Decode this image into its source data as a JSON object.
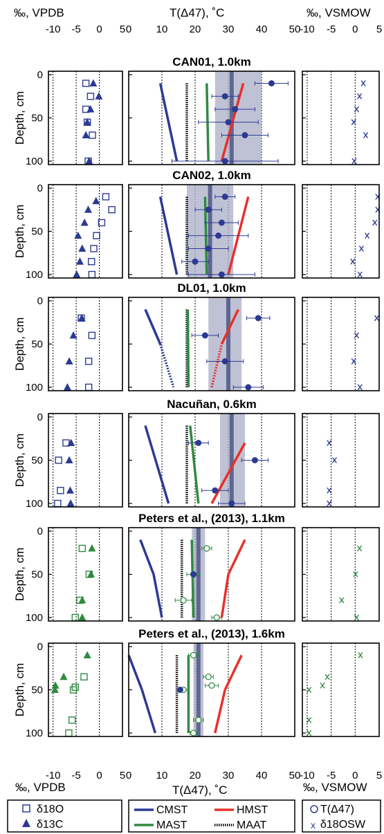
{
  "top_axes": {
    "left_label": "‰, VPDB",
    "middle_label": "T(Δ47), ˚C",
    "right_label": "‰, VSMOW",
    "left_ticks": [
      "-10",
      "-5",
      "0",
      "5"
    ],
    "middle_ticks": [
      "0",
      "10",
      "20",
      "30",
      "40",
      "50"
    ],
    "right_ticks": [
      "-10",
      "-5",
      "0",
      "5"
    ]
  },
  "bottom_axes": {
    "left_label": "‰, VPDB",
    "middle_label": "T(Δ47), ˚C",
    "right_label": "‰, VSMOW",
    "left_ticks": [
      "-10",
      "-5",
      "0",
      "5"
    ],
    "middle_ticks": [
      "0",
      "10",
      "20",
      "30",
      "40",
      "50"
    ],
    "right_ticks": [
      "-10",
      "-5",
      "0",
      "5"
    ]
  },
  "y_axis": {
    "label": "Depth, cm",
    "ticks": [
      "0",
      "50",
      "100"
    ]
  },
  "legend": {
    "left": [
      "δ18O",
      "δ13C"
    ],
    "middle": [
      "CMST",
      "HMST",
      "MAST",
      "MAAT"
    ],
    "right": [
      "T(Δ47)",
      "δ18OSW"
    ]
  },
  "colors": {
    "blue": "#2c3a93",
    "green": "#2e8b3e",
    "red": "#e8302a",
    "shade": "#a9aec6",
    "avg_band": "#5e6691"
  },
  "chart_data": [
    {
      "type": "scatter",
      "title": "CAN01, 1.0km",
      "color": "blue",
      "d18O": [
        [
          -2.9,
          10
        ],
        [
          -1.9,
          25
        ],
        [
          -2.9,
          40
        ],
        [
          -2.6,
          55
        ],
        [
          -1.5,
          70
        ],
        [
          -2.4,
          100
        ]
      ],
      "d13C": [
        [
          -1.3,
          10
        ],
        [
          -0.1,
          25
        ],
        [
          -1.9,
          40
        ],
        [
          -2.6,
          55
        ],
        [
          -2.9,
          70
        ],
        [
          -2.2,
          100
        ]
      ],
      "d18Osw": [
        [
          1.7,
          10
        ],
        [
          0.9,
          25
        ],
        [
          0.3,
          40
        ],
        [
          -0.3,
          55
        ],
        [
          2.2,
          70
        ],
        [
          -0.2,
          100
        ]
      ],
      "T47": [
        [
          43,
          10,
          5
        ],
        [
          29,
          25,
          4
        ],
        [
          32,
          40,
          6
        ],
        [
          30,
          55,
          9
        ],
        [
          35,
          70,
          7
        ],
        [
          29,
          100,
          16
        ]
      ],
      "T47_open": false,
      "CMST": [
        [
          9.5,
          10
        ],
        [
          14.5,
          100
        ]
      ],
      "HMST": [
        [
          28,
          100
        ],
        [
          34.5,
          10
        ]
      ],
      "MAST": [
        23.5,
        24
      ],
      "MAAT": 17.5,
      "avg_T": 31,
      "avg_band": [
        26,
        40
      ],
      "cmst_dotted_from": null,
      "hmst_dotted_from": null
    },
    {
      "type": "scatter",
      "title": "CAN02, 1.0km",
      "color": "blue",
      "d18O": [
        [
          1.4,
          10
        ],
        [
          2.7,
          25
        ],
        [
          0.5,
          40
        ],
        [
          -0.6,
          55
        ],
        [
          -1.2,
          70
        ],
        [
          -1.7,
          85
        ],
        [
          -1.6,
          100
        ]
      ],
      "d13C": [
        [
          -0.7,
          15
        ],
        [
          -2.4,
          25
        ],
        [
          -3.2,
          40
        ],
        [
          -4.6,
          55
        ],
        [
          -3.7,
          70
        ],
        [
          -4.2,
          85
        ],
        [
          -4.9,
          100
        ]
      ],
      "d18Osw": [
        [
          4.7,
          10
        ],
        [
          4.7,
          25
        ],
        [
          4.1,
          40
        ],
        [
          2.5,
          55
        ],
        [
          1.3,
          70
        ],
        [
          -0.5,
          85
        ],
        [
          1.0,
          100
        ]
      ],
      "T47": [
        [
          29,
          10,
          3
        ],
        [
          24,
          25,
          4
        ],
        [
          28,
          40,
          5
        ],
        [
          27,
          55,
          9
        ],
        [
          24,
          70,
          6
        ],
        [
          20,
          85,
          4
        ],
        [
          28,
          100,
          10
        ]
      ],
      "T47_open": false,
      "CMST": [
        [
          9.5,
          10
        ],
        [
          14.5,
          100
        ]
      ],
      "HMST": [
        [
          30,
          100
        ],
        [
          36,
          10
        ]
      ],
      "MAST": [
        23,
        23.5
      ],
      "MAAT": 17.5,
      "avg_T": 24.5,
      "avg_band": [
        17.5,
        31.5
      ],
      "cmst_dotted_from": null,
      "hmst_dotted_from": null
    },
    {
      "type": "scatter",
      "title": "DL01, 1.0km",
      "color": "blue",
      "d18O": [
        [
          -3.9,
          20
        ],
        [
          -1.6,
          40
        ],
        [
          -2.3,
          70
        ],
        [
          -2.3,
          100
        ]
      ],
      "d13C": [
        [
          -3.8,
          20
        ],
        [
          -5.6,
          40
        ],
        [
          -6.5,
          70
        ],
        [
          -6.9,
          100
        ]
      ],
      "d18Osw": [
        [
          4.5,
          20
        ],
        [
          0.3,
          40
        ],
        [
          -0.3,
          70
        ],
        [
          1.0,
          100
        ]
      ],
      "T47": [
        [
          39,
          20,
          3.5
        ],
        [
          23,
          40,
          4
        ],
        [
          29,
          70,
          5.5
        ],
        [
          36,
          100,
          4.5
        ]
      ],
      "T47_open": false,
      "CMST": [
        [
          5,
          10
        ],
        [
          9.5,
          50
        ],
        [
          13.5,
          100
        ]
      ],
      "HMST": [
        [
          25,
          100
        ],
        [
          28,
          50
        ],
        [
          33,
          10
        ]
      ],
      "MAST": [
        17.8,
        18
      ],
      "MAAT": 17.5,
      "avg_T": 30,
      "avg_band": [
        24,
        34
      ],
      "cmst_dotted_from": 50,
      "hmst_dotted_from": 50
    },
    {
      "type": "scatter",
      "title": "Nacuñan, 0.6km",
      "color": "blue",
      "d18O": [
        [
          -7.2,
          30
        ],
        [
          -8.8,
          50
        ],
        [
          -8.4,
          85
        ],
        [
          -9.0,
          100
        ]
      ],
      "d13C": [
        [
          -6.1,
          30
        ],
        [
          -6.5,
          50
        ],
        [
          -6.3,
          85
        ],
        [
          -6.2,
          100
        ]
      ],
      "d18Osw": [
        [
          -5.4,
          30
        ],
        [
          -4.3,
          50
        ],
        [
          -5.4,
          85
        ],
        [
          -5.4,
          100
        ]
      ],
      "T47": [
        [
          21,
          30,
          3
        ],
        [
          38,
          50,
          4
        ],
        [
          26,
          85,
          4
        ],
        [
          31,
          100,
          4
        ]
      ],
      "T47_open": false,
      "CMST": [
        [
          5,
          10
        ],
        [
          12,
          100
        ]
      ],
      "HMST": [
        [
          25,
          100
        ],
        [
          35,
          30
        ]
      ],
      "MAST": [
        18.5,
        21
      ],
      "MAAT": 17.5,
      "avg_T": 31,
      "avg_band": [
        27.5,
        35
      ],
      "cmst_dotted_from": null,
      "hmst_dotted_from": null
    },
    {
      "type": "scatter",
      "title": "Peters et al., (2013), 1.1km",
      "color": "green",
      "d18O": [
        [
          -3.7,
          20
        ],
        [
          -2.2,
          50
        ],
        [
          -4.2,
          80
        ],
        [
          -5.2,
          100
        ]
      ],
      "d13C": [
        [
          -1.6,
          20
        ],
        [
          -1.8,
          50
        ],
        [
          -3.7,
          80
        ],
        [
          -3.7,
          100
        ]
      ],
      "d18Osw": [
        [
          0.9,
          20
        ],
        [
          0.1,
          50
        ],
        [
          -2.8,
          80
        ],
        [
          0.3,
          100
        ]
      ],
      "T47": [
        [
          23.5,
          20,
          1.5
        ],
        [
          19.5,
          50,
          2
        ],
        [
          16.5,
          80,
          2.5
        ],
        [
          26.5,
          100,
          1.5
        ]
      ],
      "T47_open": true,
      "blue_point": [
        19.5,
        50
      ],
      "CMST": [
        [
          3.5,
          10
        ],
        [
          7.5,
          50
        ],
        [
          10,
          100
        ]
      ],
      "HMST": [
        [
          28,
          100
        ],
        [
          30,
          50
        ],
        [
          35,
          10
        ]
      ],
      "MAST": [
        19,
        19.5
      ],
      "MAAT": 16,
      "avg_T": 21,
      "avg_band": [
        19,
        23
      ],
      "cmst_dotted_from": null,
      "hmst_dotted_from": null
    },
    {
      "type": "scatter",
      "title": "Peters et al., (2013), 1.6km",
      "color": "green",
      "d18O": [
        [
          -3.3,
          35
        ],
        [
          -5.2,
          47
        ],
        [
          -5.6,
          50
        ],
        [
          -5.9,
          85
        ],
        [
          -6.6,
          100
        ]
      ],
      "d13C": [
        [
          -2.6,
          10
        ],
        [
          -7.7,
          35
        ],
        [
          -9.5,
          45
        ],
        [
          -9.6,
          50
        ]
      ],
      "d18Osw": [
        [
          1.1,
          10
        ],
        [
          -5.8,
          35
        ],
        [
          -6.8,
          45
        ],
        [
          -9.6,
          50
        ],
        [
          -9.6,
          85
        ],
        [
          -9.6,
          100
        ]
      ],
      "T47": [
        [
          19.5,
          10,
          1.5
        ],
        [
          24,
          35,
          1.5
        ],
        [
          25,
          45,
          2
        ],
        [
          16.5,
          50,
          1.5
        ],
        [
          21,
          85,
          1.5
        ],
        [
          19.5,
          100,
          1
        ]
      ],
      "T47_open": true,
      "blue_point": [
        15.5,
        50
      ],
      "CMST": [
        [
          0,
          10
        ],
        [
          4,
          50
        ],
        [
          8,
          100
        ]
      ],
      "HMST": [
        [
          26,
          100
        ],
        [
          29,
          50
        ],
        [
          34,
          10
        ]
      ],
      "MAST": [
        18,
        18
      ],
      "MAAT": 14.5,
      "avg_T": 21,
      "avg_band": [
        19.5,
        22.5
      ],
      "cmst_dotted_from": null,
      "hmst_dotted_from": null
    }
  ]
}
